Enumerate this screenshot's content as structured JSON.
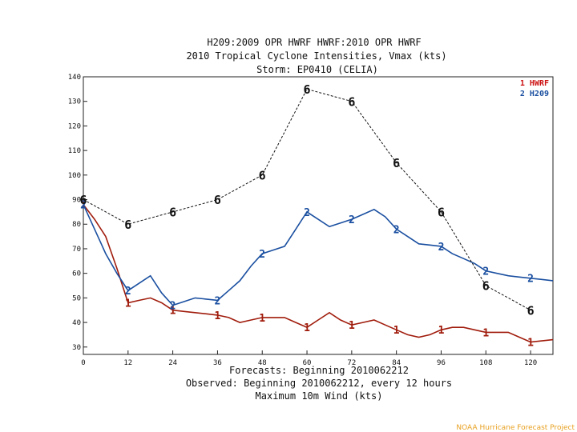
{
  "chart_data": {
    "type": "line",
    "title_lines": [
      "H209:2009 OPR HWRF    HWRF:2010 OPR HWRF",
      "2010 Tropical Cyclone Intensities, Vmax (kts)",
      "Storm: EP0410 (CELIA)"
    ],
    "xlabel_lines": [
      "Forecasts: Beginning 2010062212",
      "Observed: Beginning 2010062212, every 12 hours",
      "Maximum 10m Wind (kts)"
    ],
    "x_ticks": [
      0,
      12,
      24,
      36,
      48,
      60,
      72,
      84,
      96,
      108,
      120
    ],
    "y_ticks": [
      30,
      40,
      50,
      60,
      70,
      80,
      90,
      100,
      110,
      120,
      130,
      140
    ],
    "xlim": [
      0,
      126
    ],
    "ylim": [
      27,
      140
    ],
    "series": [
      {
        "name": "Observed",
        "marker": "6",
        "color": "#111111",
        "dashed": true,
        "x": [
          0,
          12,
          24,
          36,
          48,
          60,
          72,
          84,
          96,
          108,
          120
        ],
        "y": [
          90,
          80,
          85,
          90,
          100,
          135,
          130,
          105,
          85,
          55,
          45
        ],
        "labels": [
          0,
          12,
          24,
          36,
          48,
          60,
          72,
          84,
          96,
          108,
          120
        ]
      },
      {
        "name": "HWRF",
        "marker": "1",
        "color": "#a01c0c",
        "dashed": false,
        "x": [
          0,
          3,
          6,
          9,
          12,
          15,
          18,
          21,
          24,
          27,
          30,
          33,
          36,
          39,
          42,
          45,
          48,
          51,
          54,
          57,
          60,
          63,
          66,
          69,
          72,
          75,
          78,
          81,
          84,
          87,
          90,
          93,
          96,
          99,
          102,
          105,
          108,
          111,
          114,
          117,
          120,
          123,
          126
        ],
        "y": [
          88,
          82,
          75,
          62,
          48,
          49,
          50,
          48,
          45,
          44.5,
          44,
          43.5,
          43,
          42,
          40,
          41,
          42,
          42,
          42,
          40,
          38,
          41,
          44,
          41,
          39,
          40,
          41,
          39,
          37,
          35,
          34,
          35,
          37,
          38,
          38,
          37,
          36,
          36,
          36,
          34,
          32,
          32.5,
          33
        ],
        "labels": [
          0,
          12,
          24,
          36,
          48,
          60,
          72,
          84,
          96,
          108,
          120
        ]
      },
      {
        "name": "H209",
        "marker": "2",
        "color": "#1a4fa0",
        "dashed": false,
        "x": [
          0,
          3,
          6,
          9,
          12,
          15,
          18,
          21,
          24,
          27,
          30,
          33,
          36,
          39,
          42,
          45,
          48,
          51,
          54,
          57,
          60,
          63,
          66,
          69,
          72,
          75,
          78,
          81,
          84,
          87,
          90,
          93,
          96,
          99,
          102,
          105,
          108,
          111,
          114,
          117,
          120,
          123,
          126
        ],
        "y": [
          88,
          78,
          68,
          60,
          53,
          56,
          59,
          52,
          47,
          48.5,
          50,
          49.5,
          49,
          53,
          57,
          63,
          68,
          69.5,
          71,
          78,
          85,
          82,
          79,
          80.5,
          82,
          84,
          86,
          83,
          78,
          75,
          72,
          71.5,
          71,
          68,
          66,
          64,
          61,
          60,
          59,
          58.5,
          58,
          57.5,
          57
        ],
        "labels": [
          0,
          12,
          24,
          36,
          48,
          60,
          72,
          84,
          96,
          108,
          120
        ]
      }
    ],
    "legend": [
      {
        "num": "1",
        "name": "HWRF",
        "color": "#cc1111"
      },
      {
        "num": "2",
        "name": "H209",
        "color": "#1a4fa0"
      }
    ],
    "legend_position": "top-right"
  },
  "footer": "NOAA Hurricane Forecast Project"
}
